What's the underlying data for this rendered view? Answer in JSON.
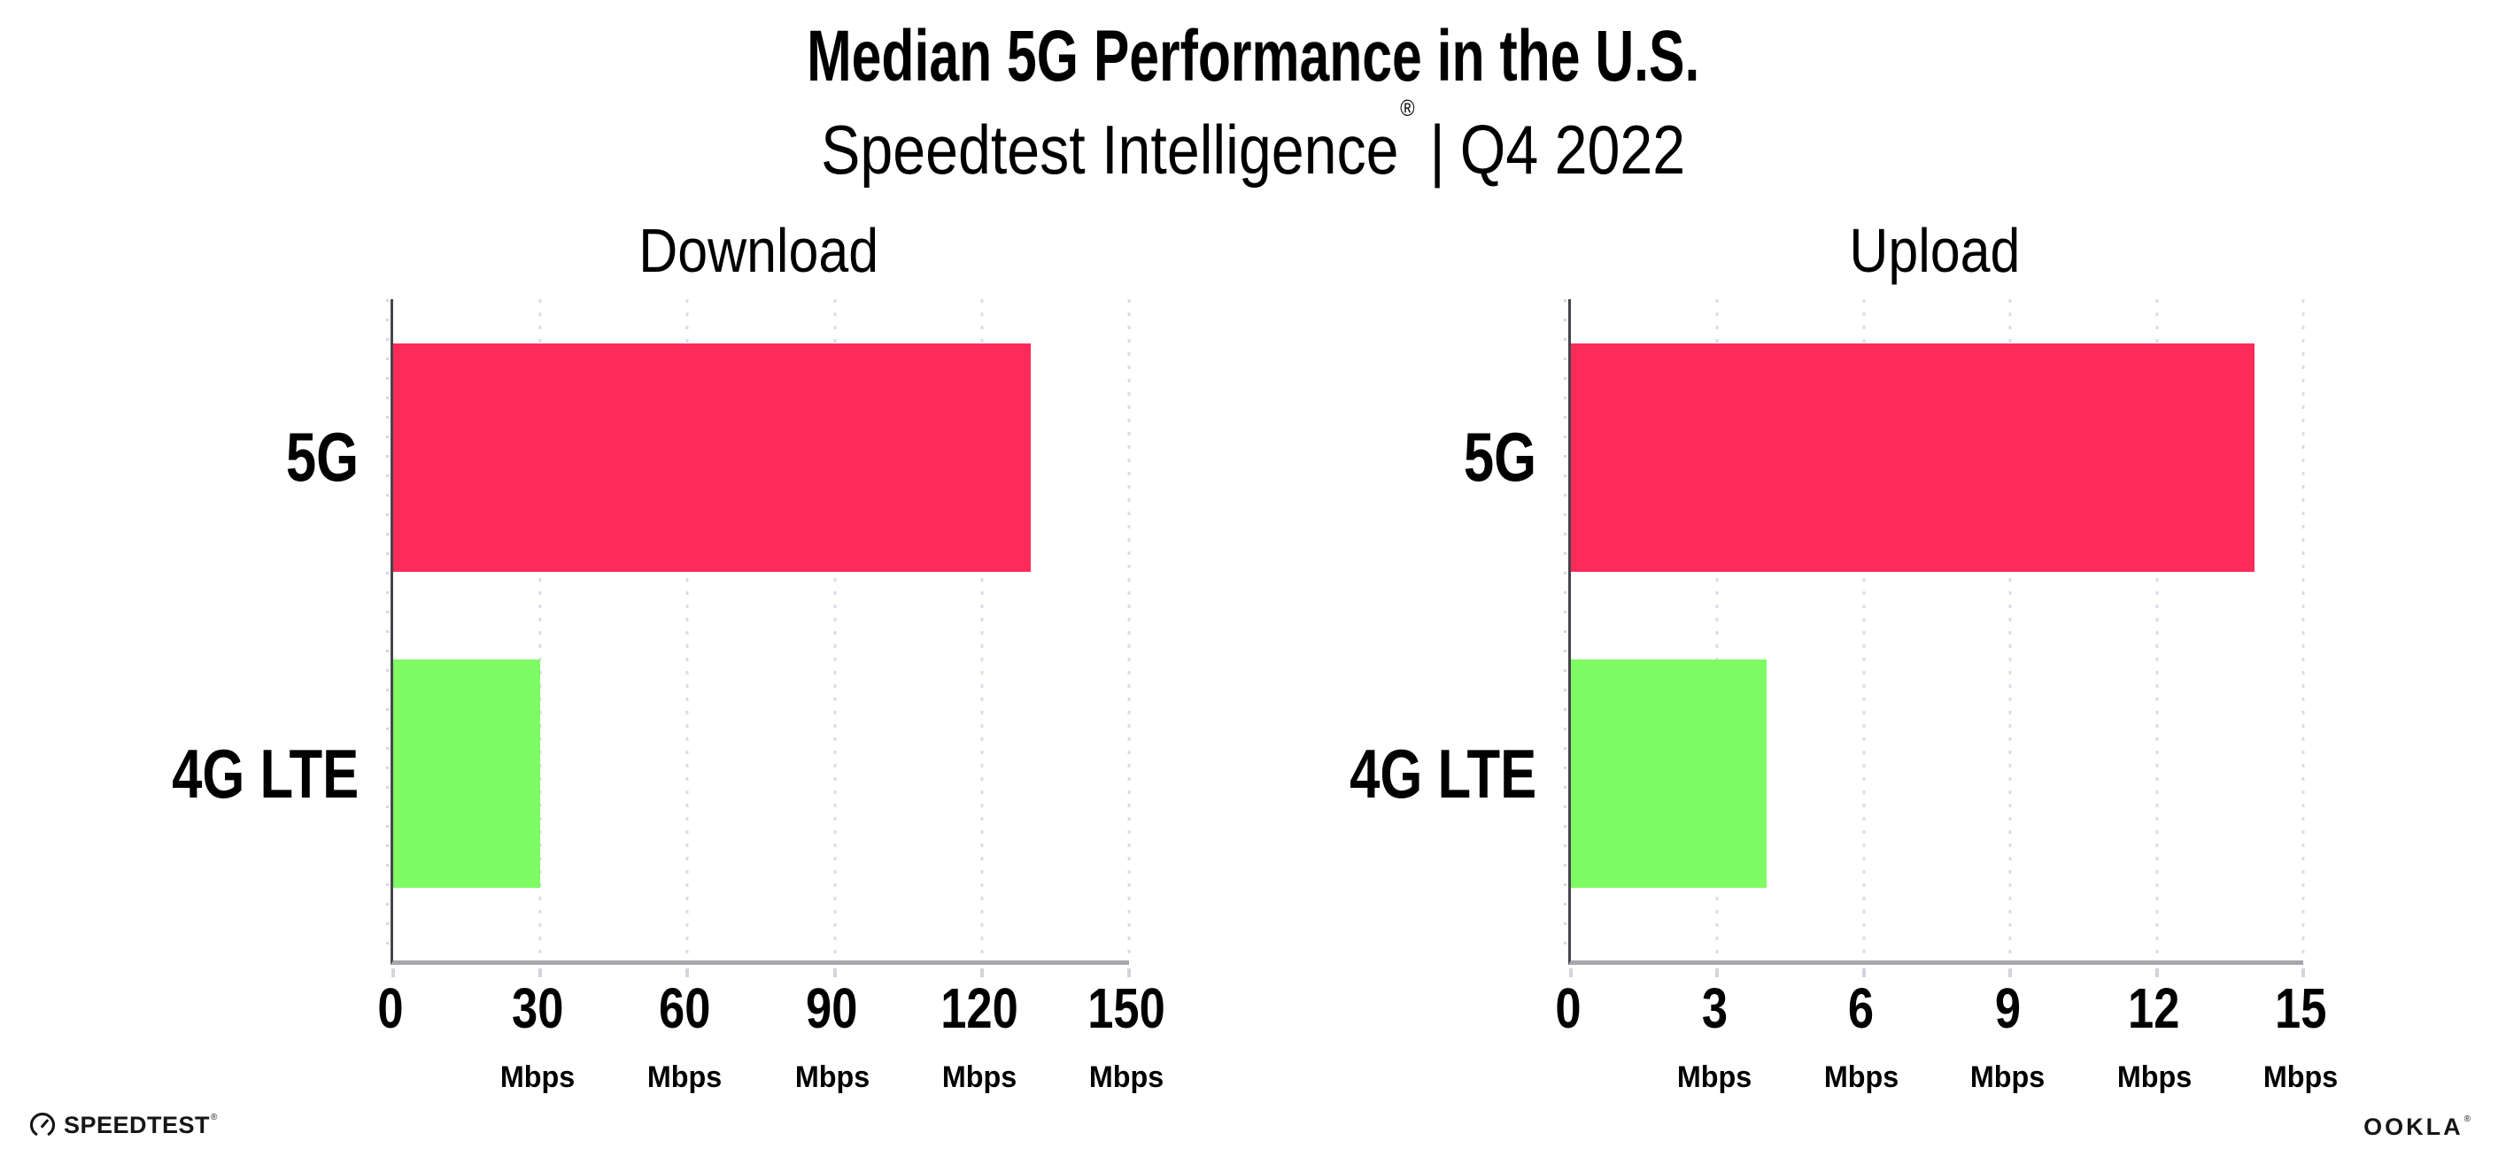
{
  "header": {
    "title": "Median 5G Performance in the U.S.",
    "subtitle": {
      "brand": "Speedtest Intelligence",
      "registered_mark": "®",
      "separator": "|",
      "period": "Q4 2022"
    }
  },
  "chart_data": [
    {
      "id": "download",
      "type": "bar",
      "orientation": "horizontal",
      "title": "Download",
      "categories": [
        "5G",
        "4G LTE"
      ],
      "values": [
        130,
        30
      ],
      "unit": "Mbps",
      "tick_unit": "Mbps",
      "xlim": [
        0,
        150
      ],
      "xticks": [
        0,
        30,
        60,
        90,
        120,
        150
      ],
      "bar_colors": [
        "#FC2B59",
        "#7FFB63"
      ],
      "grid": "dotted-vertical-at-ticks",
      "legend": "none"
    },
    {
      "id": "upload",
      "type": "bar",
      "orientation": "horizontal",
      "title": "Upload",
      "categories": [
        "5G",
        "4G LTE"
      ],
      "values": [
        14,
        4
      ],
      "unit": "Mbps",
      "tick_unit": "Mbps",
      "xlim": [
        0,
        15
      ],
      "xticks": [
        0,
        3,
        6,
        9,
        12,
        15
      ],
      "bar_colors": [
        "#FC2B59",
        "#7FFB63"
      ],
      "grid": "dotted-vertical-at-ticks",
      "legend": "none"
    }
  ],
  "footer": {
    "speedtest": {
      "label": "SPEEDTEST",
      "registered_mark": "®",
      "icon": "speedometer-gauge-icon"
    },
    "ookla": {
      "label": "OOKLA",
      "registered_mark": "®"
    }
  },
  "colors": {
    "bar_5g": "#FC2B59",
    "bar_4g_lte": "#7FFB63",
    "gridline": "#DBDCE8",
    "y_axis": "#45454D",
    "x_axis": "#A7A7AB",
    "text": "#000000",
    "background": "#FFFFFF"
  }
}
